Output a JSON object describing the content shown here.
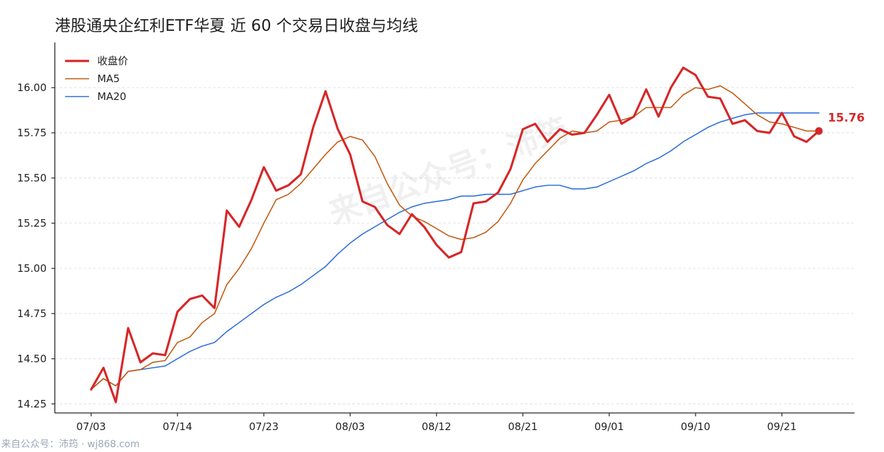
{
  "chart_data": {
    "type": "line",
    "title": "港股通央企红利ETF华夏 近 60 个交易日收盘与均线",
    "xlabel": "",
    "ylabel": "",
    "ylim": [
      14.2,
      16.25
    ],
    "yticks": [
      "14.25",
      "14.50",
      "14.75",
      "15.00",
      "15.25",
      "15.50",
      "15.75",
      "16.00"
    ],
    "xticks": [
      {
        "index": 0,
        "label": "07/03"
      },
      {
        "index": 7,
        "label": "07/14"
      },
      {
        "index": 14,
        "label": "07/23"
      },
      {
        "index": 21,
        "label": "08/03"
      },
      {
        "index": 28,
        "label": "08/12"
      },
      {
        "index": 35,
        "label": "08/21"
      },
      {
        "index": 42,
        "label": "09/01"
      },
      {
        "index": 49,
        "label": "09/10"
      },
      {
        "index": 56,
        "label": "09/21"
      }
    ],
    "grid": "horizontal",
    "legend_position": "top-left",
    "series": [
      {
        "name": "收盘价",
        "color": "#d62728",
        "values": [
          14.33,
          14.45,
          14.26,
          14.67,
          14.48,
          14.53,
          14.52,
          14.76,
          14.83,
          14.85,
          14.78,
          15.32,
          15.23,
          15.38,
          15.56,
          15.43,
          15.46,
          15.52,
          15.78,
          15.98,
          15.77,
          15.63,
          15.37,
          15.34,
          15.24,
          15.19,
          15.3,
          15.23,
          15.13,
          15.06,
          15.09,
          15.36,
          15.37,
          15.42,
          15.55,
          15.77,
          15.8,
          15.7,
          15.77,
          15.74,
          15.75,
          15.85,
          15.96,
          15.8,
          15.84,
          15.99,
          15.84,
          16.0,
          16.11,
          16.07,
          15.95,
          15.94,
          15.8,
          15.82,
          15.76,
          15.75,
          15.86,
          15.73,
          15.7,
          15.76
        ]
      },
      {
        "name": "MA5",
        "color": "#c05a10",
        "values": [
          14.33,
          14.39,
          14.35,
          14.43,
          14.44,
          14.48,
          14.49,
          14.59,
          14.62,
          14.7,
          14.75,
          14.91,
          15.0,
          15.11,
          15.25,
          15.38,
          15.41,
          15.47,
          15.55,
          15.63,
          15.7,
          15.73,
          15.71,
          15.62,
          15.47,
          15.35,
          15.29,
          15.26,
          15.22,
          15.18,
          15.16,
          15.17,
          15.2,
          15.26,
          15.36,
          15.49,
          15.58,
          15.65,
          15.72,
          15.76,
          15.75,
          15.76,
          15.81,
          15.82,
          15.84,
          15.89,
          15.89,
          15.89,
          15.96,
          16.0,
          15.99,
          16.01,
          15.97,
          15.91,
          15.85,
          15.81,
          15.8,
          15.78,
          15.76,
          15.76
        ]
      },
      {
        "name": "MA20",
        "color": "#2f6fdb",
        "values": [
          14.33,
          14.39,
          14.35,
          14.43,
          14.44,
          14.45,
          14.46,
          14.5,
          14.54,
          14.57,
          14.59,
          14.65,
          14.7,
          14.75,
          14.8,
          14.84,
          14.87,
          14.91,
          14.96,
          15.01,
          15.08,
          15.14,
          15.19,
          15.23,
          15.27,
          15.31,
          15.34,
          15.36,
          15.37,
          15.38,
          15.4,
          15.4,
          15.41,
          15.41,
          15.41,
          15.43,
          15.45,
          15.46,
          15.46,
          15.44,
          15.44,
          15.45,
          15.48,
          15.51,
          15.54,
          15.58,
          15.61,
          15.65,
          15.7,
          15.74,
          15.78,
          15.81,
          15.83,
          15.85,
          15.86,
          15.86,
          15.86,
          15.86,
          15.86,
          15.86
        ]
      }
    ],
    "annotation": {
      "label": "15.76",
      "series": "收盘价",
      "index": 59,
      "color": "#d62728"
    }
  },
  "watermark": "来自公众号：沛筠",
  "footer": "来自公众号：沛筠 · wj868.com"
}
